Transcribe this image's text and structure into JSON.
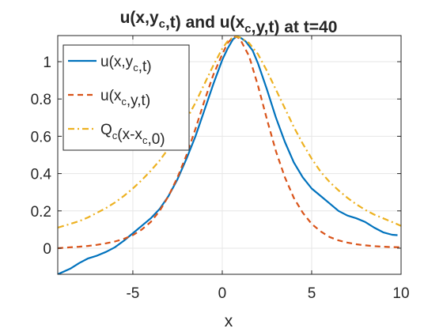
{
  "chart_data": {
    "type": "line",
    "title": "u(x,y_c,t) and u(x_c,y,t) at t=40",
    "xlabel": "x",
    "ylabel": "",
    "xlim": [
      -9.2,
      10
    ],
    "ylim": [
      -0.14,
      1.14
    ],
    "xticks": [
      -5,
      0,
      5,
      10
    ],
    "yticks": [
      0,
      0.2,
      0.4,
      0.6,
      0.8,
      1
    ],
    "xtick_labels": [
      "-5",
      "0",
      "5",
      "10"
    ],
    "ytick_labels": [
      "0",
      "0.2",
      "0.4",
      "0.6",
      "0.8",
      "1"
    ],
    "grid": true,
    "legend_position": "top-left",
    "series": [
      {
        "name": "u(x,y_c,t)",
        "color": "#0072BD",
        "style": "solid",
        "x": [
          -9.2,
          -8.5,
          -8,
          -7.5,
          -7,
          -6.5,
          -6,
          -5.5,
          -5,
          -4.5,
          -4,
          -3.5,
          -3,
          -2.5,
          -2,
          -1.5,
          -1,
          -0.5,
          0,
          0.3,
          0.6,
          0.8,
          1.0,
          1.3,
          1.7,
          2,
          2.5,
          3,
          3.5,
          4,
          4.5,
          5,
          5.5,
          6,
          6.5,
          7,
          7.5,
          8,
          8.5,
          9,
          9.5,
          9.8
        ],
        "y": [
          -0.14,
          -0.11,
          -0.08,
          -0.055,
          -0.04,
          -0.02,
          0.005,
          0.04,
          0.08,
          0.12,
          0.16,
          0.21,
          0.28,
          0.37,
          0.48,
          0.6,
          0.74,
          0.88,
          1.01,
          1.07,
          1.12,
          1.135,
          1.13,
          1.11,
          1.06,
          0.99,
          0.85,
          0.7,
          0.57,
          0.46,
          0.38,
          0.32,
          0.28,
          0.24,
          0.2,
          0.175,
          0.16,
          0.14,
          0.11,
          0.085,
          0.072,
          0.07
        ]
      },
      {
        "name": "u(x_c,y,t)",
        "color": "#D95319",
        "style": "dashed",
        "x": [
          -9.2,
          -8.5,
          -8,
          -7.5,
          -7,
          -6.5,
          -6,
          -5.5,
          -5,
          -4.5,
          -4,
          -3.5,
          -3,
          -2.5,
          -2,
          -1.5,
          -1,
          -0.5,
          0,
          0.3,
          0.6,
          0.8,
          1.0,
          1.5,
          2,
          2.5,
          3,
          3.5,
          4,
          4.5,
          5,
          5.5,
          6,
          6.5,
          7,
          7.5,
          8,
          8.5,
          9,
          9.5,
          10
        ],
        "y": [
          0.0,
          0.005,
          0.008,
          0.012,
          0.018,
          0.026,
          0.036,
          0.05,
          0.07,
          0.1,
          0.14,
          0.2,
          0.28,
          0.38,
          0.5,
          0.64,
          0.79,
          0.93,
          1.04,
          1.1,
          1.13,
          1.135,
          1.12,
          1.03,
          0.87,
          0.69,
          0.52,
          0.38,
          0.27,
          0.19,
          0.13,
          0.09,
          0.06,
          0.042,
          0.03,
          0.021,
          0.015,
          0.011,
          0.008,
          0.006,
          0.005
        ]
      },
      {
        "name": "Q_c(x-x_c,0)",
        "color": "#EDB120",
        "style": "dash-dot",
        "x": [
          -9.2,
          -8.5,
          -8,
          -7.5,
          -7,
          -6.5,
          -6,
          -5.5,
          -5,
          -4.5,
          -4,
          -3.5,
          -3,
          -2.5,
          -2,
          -1.5,
          -1,
          -0.5,
          0,
          0.3,
          0.6,
          0.8,
          1.0,
          1.5,
          2,
          2.5,
          3,
          3.5,
          4,
          4.5,
          5,
          5.5,
          6,
          6.5,
          7,
          7.5,
          8,
          8.5,
          9,
          9.5,
          10
        ],
        "y": [
          0.11,
          0.13,
          0.145,
          0.165,
          0.19,
          0.215,
          0.245,
          0.28,
          0.32,
          0.365,
          0.415,
          0.47,
          0.535,
          0.61,
          0.69,
          0.78,
          0.88,
          0.98,
          1.07,
          1.11,
          1.13,
          1.135,
          1.13,
          1.1,
          1.04,
          0.95,
          0.85,
          0.75,
          0.65,
          0.56,
          0.48,
          0.41,
          0.355,
          0.31,
          0.27,
          0.235,
          0.205,
          0.18,
          0.16,
          0.14,
          0.12
        ]
      }
    ]
  }
}
